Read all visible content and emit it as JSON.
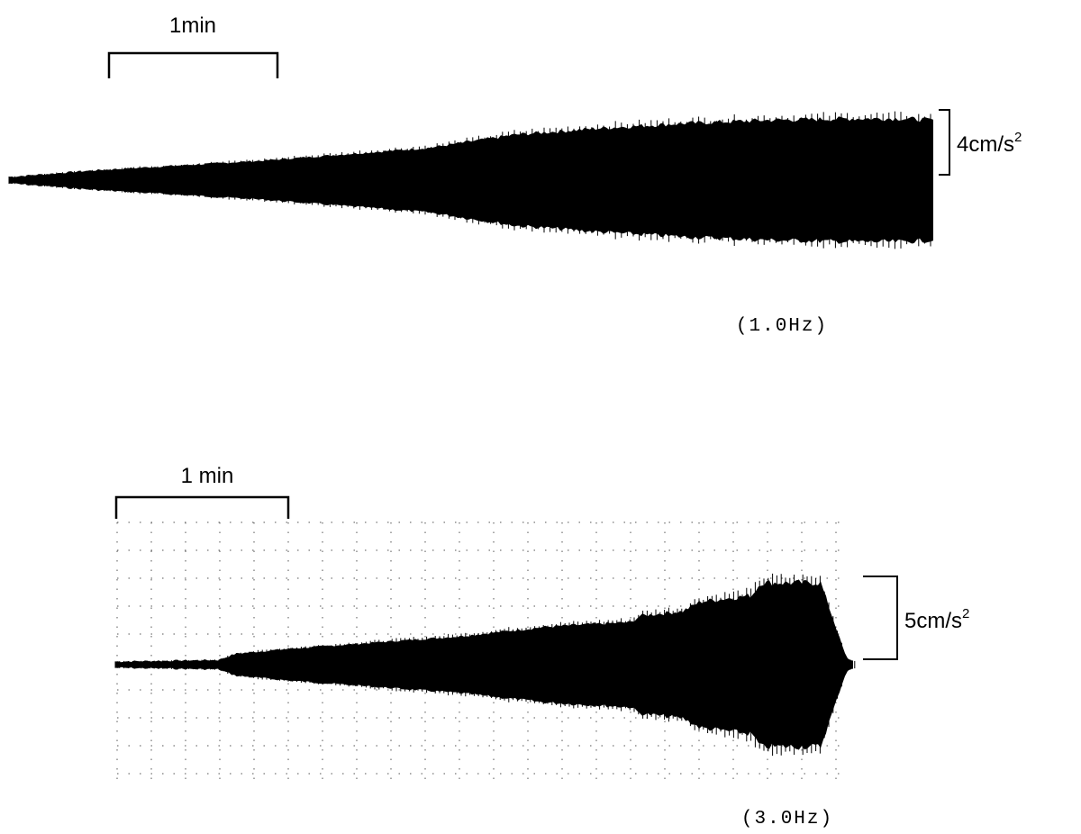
{
  "chart_data": [
    {
      "type": "area",
      "caption": "(1.0Hz)",
      "time_scale_label": "1min",
      "amplitude_scale": {
        "value": "4cm/s",
        "exponent": "2"
      },
      "envelope": {
        "x_min": [
          0,
          0.25,
          0.5,
          1,
          1.5,
          2,
          2.5,
          2.75,
          3,
          3.5,
          4,
          4.5,
          5,
          5.3,
          5.5
        ],
        "amplitude": [
          0.1,
          0.2,
          0.3,
          0.45,
          0.6,
          0.8,
          1.0,
          1.2,
          1.4,
          1.6,
          1.75,
          1.85,
          1.9,
          1.9,
          1.85
        ]
      },
      "grid": false
    },
    {
      "type": "area",
      "caption": "(3.0Hz)",
      "time_scale_label": "1 min",
      "amplitude_scale": {
        "value": "5cm/s",
        "exponent": "2"
      },
      "envelope": {
        "x_min": [
          0,
          0.6,
          0.7,
          1.0,
          1.5,
          2.0,
          2.5,
          3.0,
          3.05,
          3.3,
          3.4,
          3.7,
          3.75,
          4.1,
          4.25,
          4.3
        ],
        "amplitude": [
          0.1,
          0.15,
          0.35,
          0.5,
          0.7,
          0.9,
          1.2,
          1.35,
          1.55,
          1.7,
          2.0,
          2.2,
          2.6,
          2.6,
          0.2,
          0.1
        ]
      },
      "grid": true
    }
  ]
}
